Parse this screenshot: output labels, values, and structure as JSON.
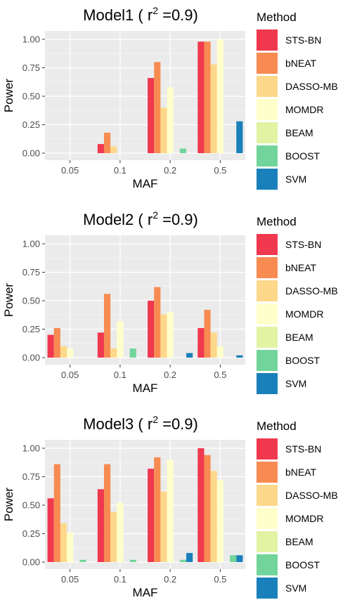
{
  "legend": {
    "title": "Method",
    "items": [
      {
        "label": "STS-BN",
        "color": "#F0384F"
      },
      {
        "label": "bNEAT",
        "color": "#F88B52"
      },
      {
        "label": "DASSO-MB",
        "color": "#FDD88A"
      },
      {
        "label": "MOMDR",
        "color": "#FFFFCC"
      },
      {
        "label": "BEAM",
        "color": "#E2F3A4"
      },
      {
        "label": "BOOST",
        "color": "#72D49A"
      },
      {
        "label": "SVM",
        "color": "#1A80BB"
      }
    ]
  },
  "chart_data": [
    {
      "type": "bar",
      "title_prefix": "Model1 ( r",
      "title_sup": "2",
      "title_suffix": " =0.9)",
      "xlabel": "MAF",
      "ylabel": "Power",
      "categories": [
        "0.05",
        "0.1",
        "0.2",
        "0.5"
      ],
      "ylim": [
        0,
        1.0
      ],
      "yticks": [
        "0.00",
        "0.25",
        "0.50",
        "0.75",
        "1.00"
      ],
      "series": [
        {
          "name": "STS-BN",
          "values": [
            0,
            0.08,
            0.66,
            0.98
          ]
        },
        {
          "name": "bNEAT",
          "values": [
            0,
            0.18,
            0.8,
            0.98
          ]
        },
        {
          "name": "DASSO-MB",
          "values": [
            0,
            0.06,
            0.4,
            0.78
          ]
        },
        {
          "name": "MOMDR",
          "values": [
            0,
            0,
            0.58,
            1.0
          ]
        },
        {
          "name": "BEAM",
          "values": [
            0,
            0,
            0,
            0
          ]
        },
        {
          "name": "BOOST",
          "values": [
            0,
            0,
            0.04,
            0
          ]
        },
        {
          "name": "SVM",
          "values": [
            0,
            0,
            0,
            0.28
          ]
        }
      ]
    },
    {
      "type": "bar",
      "title_prefix": "Model2 ( r",
      "title_sup": "2",
      "title_suffix": " =0.9)",
      "xlabel": "MAF",
      "ylabel": "Power",
      "categories": [
        "0.05",
        "0.1",
        "0.2",
        "0.5"
      ],
      "ylim": [
        0,
        1.0
      ],
      "yticks": [
        "0.00",
        "0.25",
        "0.50",
        "0.75",
        "1.00"
      ],
      "series": [
        {
          "name": "STS-BN",
          "values": [
            0.2,
            0.22,
            0.5,
            0.26
          ]
        },
        {
          "name": "bNEAT",
          "values": [
            0.26,
            0.56,
            0.62,
            0.42
          ]
        },
        {
          "name": "DASSO-MB",
          "values": [
            0.1,
            0.08,
            0.38,
            0.22
          ]
        },
        {
          "name": "MOMDR",
          "values": [
            0.08,
            0.32,
            0.4,
            0.1
          ]
        },
        {
          "name": "BEAM",
          "values": [
            0,
            0,
            0,
            0
          ]
        },
        {
          "name": "BOOST",
          "values": [
            0,
            0.08,
            0,
            0
          ]
        },
        {
          "name": "SVM",
          "values": [
            0,
            0,
            0.04,
            0.02
          ]
        }
      ]
    },
    {
      "type": "bar",
      "title_prefix": "Model3 ( r",
      "title_sup": "2",
      "title_suffix": " =0.9)",
      "xlabel": "MAF",
      "ylabel": "Power",
      "categories": [
        "0.05",
        "0.1",
        "0.2",
        "0.5"
      ],
      "ylim": [
        0,
        1.0
      ],
      "yticks": [
        "0.00",
        "0.25",
        "0.50",
        "0.75",
        "1.00"
      ],
      "series": [
        {
          "name": "STS-BN",
          "values": [
            0.56,
            0.64,
            0.82,
            1.0
          ]
        },
        {
          "name": "bNEAT",
          "values": [
            0.86,
            0.86,
            0.92,
            0.94
          ]
        },
        {
          "name": "DASSO-MB",
          "values": [
            0.34,
            0.44,
            0.62,
            0.8
          ]
        },
        {
          "name": "MOMDR",
          "values": [
            0.26,
            0.52,
            0.9,
            0.72
          ]
        },
        {
          "name": "BEAM",
          "values": [
            0,
            0,
            0,
            0
          ]
        },
        {
          "name": "BOOST",
          "values": [
            0.02,
            0.02,
            0.02,
            0.06
          ]
        },
        {
          "name": "SVM",
          "values": [
            0,
            0,
            0.08,
            0.06
          ]
        }
      ]
    }
  ]
}
